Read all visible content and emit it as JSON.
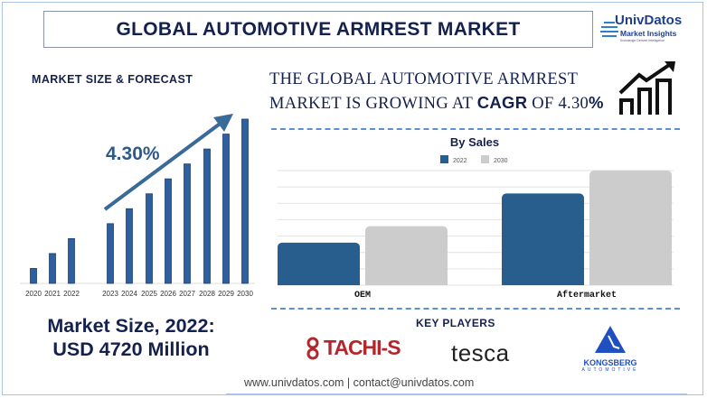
{
  "header": {
    "title": "GLOBAL AUTOMOTIVE ARMREST MARKET",
    "logo_brand": "UnivDatos",
    "logo_sub": "Market Insights",
    "logo_tagline": "Knowledge Derived Intelligence"
  },
  "left": {
    "section_title": "MARKET SIZE & FORECAST",
    "market_size_line1": "Market Size, 2022:",
    "market_size_line2": "USD 4720 Million"
  },
  "headline": {
    "line1": "The Global Automotive Armrest",
    "line2_pre": "Market is growing at ",
    "cagr_word": "CAGR",
    "line2_mid": " of ",
    "cagr_value": "4.30",
    "percent": "%"
  },
  "chart_data": [
    {
      "type": "bar",
      "title": "MARKET SIZE & FORECAST",
      "categories": [
        "2020",
        "2021",
        "2022",
        "2023",
        "2024",
        "2025",
        "2026",
        "2027",
        "2028",
        "2029",
        "2030"
      ],
      "values": [
        1,
        2,
        3,
        4,
        5,
        6,
        7,
        8,
        9,
        10,
        11
      ],
      "annotation": "4.30%",
      "colors": {
        "bar": "#2e5f9e",
        "arrow": "#3a6a98"
      }
    },
    {
      "type": "bar",
      "title": "By Sales",
      "categories": [
        "OEM",
        "Aftermarket"
      ],
      "series": [
        {
          "name": "2022",
          "values": [
            2.6,
            5.6
          ],
          "color": "#285e8e"
        },
        {
          "name": "2030",
          "values": [
            3.6,
            7.0
          ],
          "color": "#cccccc"
        }
      ],
      "ylim": [
        0,
        7
      ],
      "grid": true,
      "legend": "top-center"
    }
  ],
  "key_players": {
    "title": "KEY PLAYERS",
    "players": [
      "TACHI-S",
      "tesca",
      "KONGSBERG"
    ],
    "kongsberg_sub": "AUTOMOTIVE"
  },
  "footer": {
    "text": "www.univdatos.com | contact@univdatos.com"
  }
}
